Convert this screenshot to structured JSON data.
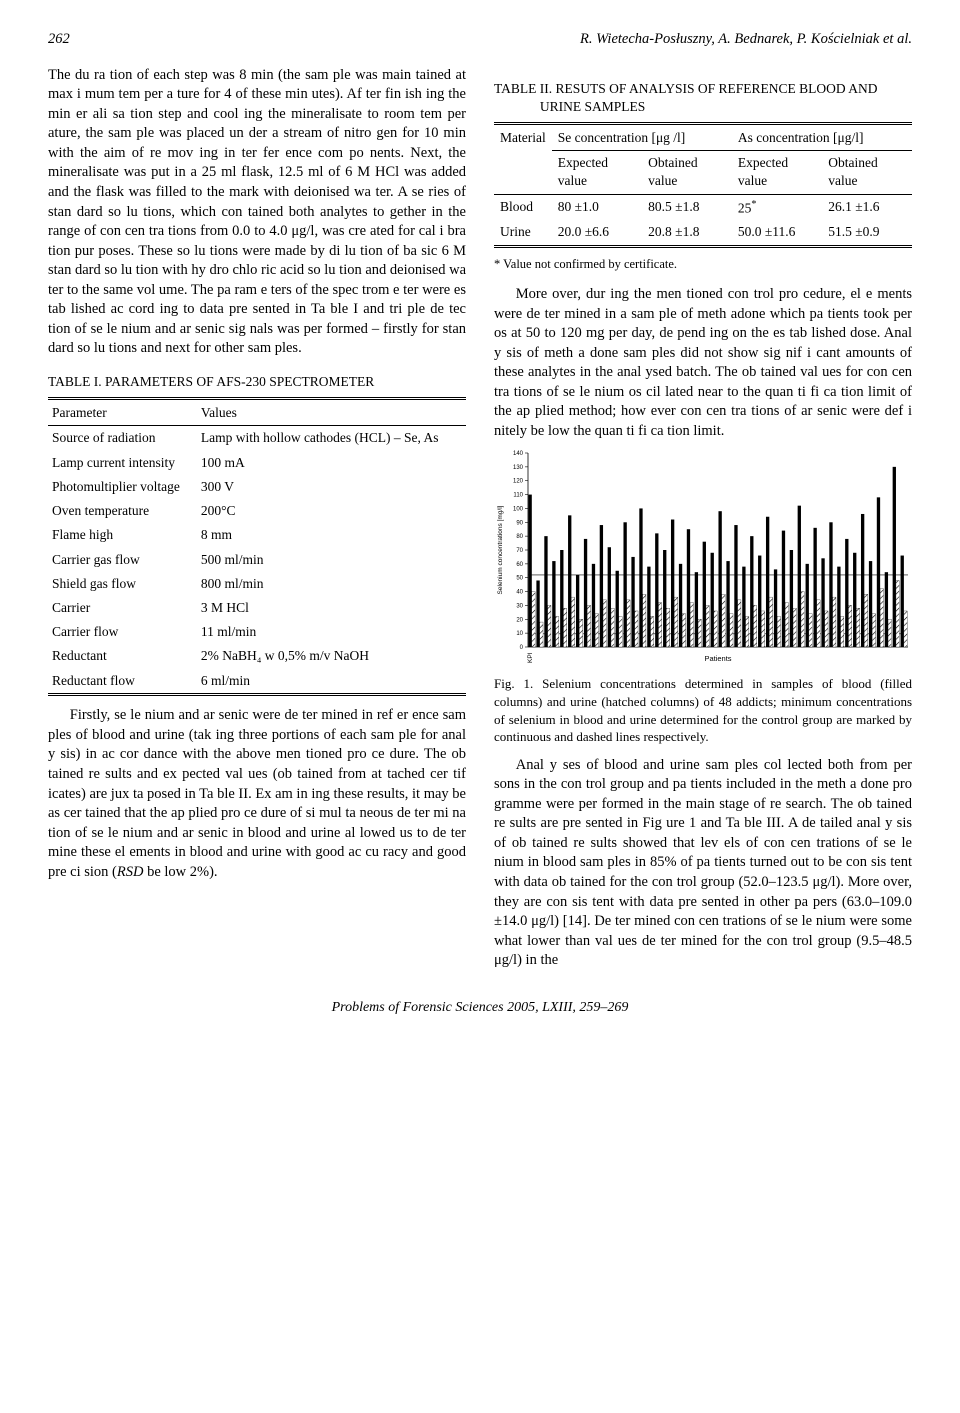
{
  "page_number": "262",
  "running_head": "R. Wietecha-Posłuszny, A. Bednarek, P. Kościelniak et al.",
  "footer": "Problems of Forensic Sciences 2005, LXIII, 259–269",
  "left": {
    "para1": "The du ra tion of each step was 8 min (the sam ple was main tained at max i mum tem per a ture for 4 of these min utes). Af ter fin ish ing the min er ali sa tion step and cool ing the mineralisate to room tem per ature, the sam ple was placed un der a stream of nitro gen for 10 min with the aim of re mov ing in ter fer ence com po nents. Next, the mineralisate was put in a 25 ml flask, 12.5 ml of 6 M HCl was added and the flask was filled to the mark with deionised wa ter. A se ries of stan dard so lu tions, which con tained both analytes to gether in the range of con cen tra tions from 0.0 to 4.0 μg/l, was cre ated for cal i bra tion pur poses. These so lu tions were made by di lu tion of ba sic 6 M stan dard so lu tion with hy dro chlo ric acid so lu tion and deionised wa ter to the same vol ume. The pa ram e ters of the spec trom e ter were es tab lished ac cord ing to data pre sented in Ta ble I and tri ple de tec tion of se le nium and ar senic sig nals was per formed – firstly for stan dard so lu tions and next for other sam ples.",
    "table1_caption": "TABLE I. PARAMETERS OF AFS-230 SPECTROMETER",
    "table1_headers": {
      "c1": "Parameter",
      "c2": "Values"
    },
    "table1_rows": [
      {
        "p": "Source of radiation",
        "v": "Lamp with hollow cathodes (HCL) – Se, As"
      },
      {
        "p": "Lamp current intensity",
        "v": "100 mA"
      },
      {
        "p": "Photomultiplier voltage",
        "v": "300 V"
      },
      {
        "p": "Oven temperature",
        "v": "200°C"
      },
      {
        "p": "Flame high",
        "v": "8 mm"
      },
      {
        "p": "Carrier gas flow",
        "v": "500 ml/min"
      },
      {
        "p": "Shield gas flow",
        "v": "800 ml/min"
      },
      {
        "p": "Carrier",
        "v": "3 M HCl"
      },
      {
        "p": "Carrier flow",
        "v": "11 ml/min"
      },
      {
        "p": "Reductant",
        "v": "2% NaBH₄ w 0,5% m/v NaOH"
      },
      {
        "p": "Reductant flow",
        "v": "6 ml/min"
      }
    ],
    "para2_indent": "Firstly, se le nium and ar senic were de ter mined in ref er ence sam ples of blood and urine (tak ing three portions of each sam ple for anal y sis) in ac cor dance with the above men tioned pro ce dure. The ob tained re sults and ex pected val ues (ob tained from at tached cer tif icates) are jux ta posed in Ta ble II. Ex am in ing these results, it may be as cer tained that the ap plied pro ce dure of si mul ta neous de ter mi na tion of se le nium and ar senic in blood and urine al lowed us to de ter mine these el ements in blood and urine with good ac cu racy and good pre ci sion (RSD be low 2%)."
  },
  "right": {
    "table2_caption": "TABLE II. RESUTS OF ANALYSIS OF REFERENCE BLOOD AND URINE SAMPLES",
    "table2": {
      "h_material": "Material",
      "h_se": "Se concentration [μg /l]",
      "h_as": "As concentration [μg/l]",
      "h_exp": "Expected value",
      "h_obt": "Obtained value",
      "rows": [
        {
          "m": "Blood",
          "se_e": "80 ±1.0",
          "se_o": "80.5 ±1.8",
          "as_e": "25*",
          "as_o": "26.1 ±1.6"
        },
        {
          "m": "Urine",
          "se_e": "20.0 ±6.6",
          "se_o": "20.8 ±1.8",
          "as_e": "50.0 ±11.6",
          "as_o": "51.5 ±0.9"
        }
      ]
    },
    "footnote": "* Value not confirmed by certificate.",
    "para1_indent": "More over, dur ing the men tioned con trol pro cedure, el e ments were de ter mined in a sam ple of meth adone which pa tients took per os at 50 to 120 mg per day, de pend ing on the es tab lished dose. Anal y sis of meth a done sam ples did not show sig nif i cant amounts of these analytes in the anal ysed batch. The ob tained val ues for con cen tra tions of se le nium os cil lated near to the quan ti fi ca tion limit of the ap plied method; how ever con cen tra tions of ar senic were def i nitely be low the quan ti fi ca tion limit.",
    "chart": {
      "type": "bar",
      "ylabel": "Selenium concentrations [mg/l]",
      "ylim": [
        0,
        140
      ],
      "ytick_step": 10,
      "xlabel": "Patients",
      "xlabel_left": "KPI",
      "bar_fill": "#000000",
      "bar_hatch": "#ffffff",
      "background": "#ffffff",
      "axis_color": "#000000",
      "series_blood": [
        110,
        48,
        80,
        62,
        70,
        95,
        52,
        78,
        60,
        88,
        72,
        55,
        90,
        65,
        100,
        58,
        82,
        70,
        92,
        60,
        85,
        54,
        76,
        68,
        98,
        62,
        88,
        58,
        80,
        66,
        94,
        56,
        84,
        70,
        102,
        60,
        86,
        64,
        90,
        58,
        78,
        68,
        96,
        62,
        108,
        54,
        130,
        66
      ],
      "series_urine": [
        40,
        18,
        30,
        22,
        28,
        36,
        20,
        30,
        24,
        34,
        28,
        22,
        34,
        26,
        38,
        22,
        32,
        28,
        36,
        24,
        32,
        20,
        30,
        26,
        38,
        24,
        34,
        22,
        30,
        26,
        36,
        22,
        32,
        28,
        40,
        24,
        34,
        26,
        36,
        22,
        30,
        28,
        38,
        24,
        42,
        20,
        48,
        26
      ]
    },
    "fig_caption": "Fig. 1. Selenium concentrations determined in samples of blood (filled columns) and urine (hatched columns) of 48 addicts; minimum concentrations of selenium in blood and urine determined for the control group are marked by continuous and dashed lines respectively.",
    "para2_indent": "Anal y ses of blood and urine sam ples col lected both from per sons in the con trol group and pa tients included in the meth a done pro gramme were per formed in the main stage of re search. The ob tained re sults are pre sented in Fig ure 1 and Ta ble III. A de tailed anal y sis of ob tained re sults showed that lev els of con cen trations of se le nium in blood sam ples in 85% of pa tients turned out to be con sis tent with data ob tained for the con trol group (52.0–123.5 μg/l). More over, they are con sis tent with data pre sented in other pa pers (63.0–109.0 ±14.0 μg/l) [14]. De ter mined con cen trations of se le nium were some what lower than val ues de ter mined for the con trol group (9.5–48.5 μg/l) in the"
  }
}
